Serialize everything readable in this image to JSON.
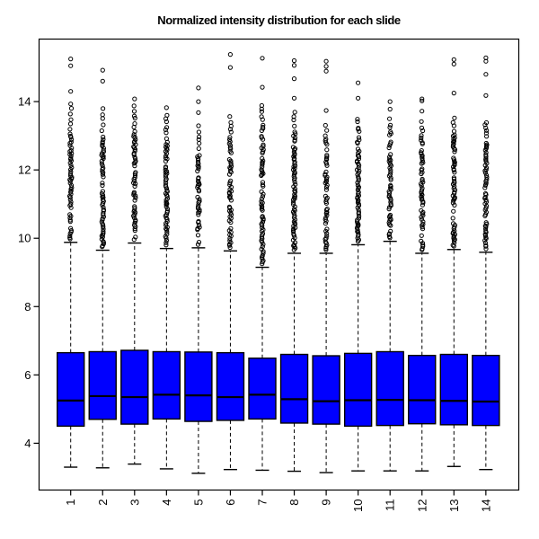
{
  "figure": {
    "title": "Normalized intensity distribution for each slide"
  },
  "chart_data": {
    "type": "boxplot",
    "title": "Normalized intensity distribution for each slide",
    "xlabel": "",
    "ylabel": "",
    "x_tick_labels": [
      "1",
      "2",
      "3",
      "4",
      "5",
      "6",
      "7",
      "8",
      "9",
      "10",
      "11",
      "12",
      "13",
      "14"
    ],
    "y_ticks": [
      4,
      6,
      8,
      10,
      12,
      14
    ],
    "ylim": [
      2.63,
      15.83
    ],
    "grid": false,
    "legend": null,
    "box_fill_color": "#0000ff",
    "line_color": "#000000",
    "background_color": "#ffffff",
    "slides": [
      {
        "label": "1",
        "whisker_low": 3.3,
        "q1": 4.5,
        "median": 5.25,
        "q3": 6.65,
        "whisker_high": 9.88,
        "dense_outliers_to": 13.0,
        "scattered_outliers_to": 14.0,
        "top_outliers": [
          14.3,
          15.05,
          15.25
        ]
      },
      {
        "label": "2",
        "whisker_low": 3.28,
        "q1": 4.7,
        "median": 5.38,
        "q3": 6.68,
        "whisker_high": 9.65,
        "dense_outliers_to": 12.9,
        "scattered_outliers_to": 13.85,
        "top_outliers": [
          14.6,
          14.92
        ]
      },
      {
        "label": "3",
        "whisker_low": 3.39,
        "q1": 4.56,
        "median": 5.35,
        "q3": 6.72,
        "whisker_high": 9.86,
        "dense_outliers_to": 13.0,
        "scattered_outliers_to": 13.95,
        "top_outliers": [
          14.08
        ]
      },
      {
        "label": "4",
        "whisker_low": 3.25,
        "q1": 4.71,
        "median": 5.42,
        "q3": 6.68,
        "whisker_high": 9.7,
        "dense_outliers_to": 12.8,
        "scattered_outliers_to": 13.6,
        "top_outliers": [
          13.82
        ]
      },
      {
        "label": "5",
        "whisker_low": 3.12,
        "q1": 4.64,
        "median": 5.4,
        "q3": 6.67,
        "whisker_high": 9.72,
        "dense_outliers_to": 12.5,
        "scattered_outliers_to": 13.45,
        "top_outliers": [
          13.68,
          14.0,
          14.4
        ]
      },
      {
        "label": "6",
        "whisker_low": 3.23,
        "q1": 4.67,
        "median": 5.35,
        "q3": 6.65,
        "whisker_high": 9.63,
        "dense_outliers_to": 12.9,
        "scattered_outliers_to": 13.65,
        "top_outliers": [
          15.0,
          15.38
        ]
      },
      {
        "label": "7",
        "whisker_low": 3.21,
        "q1": 4.71,
        "median": 5.42,
        "q3": 6.49,
        "whisker_high": 9.15,
        "dense_outliers_to": 13.3,
        "scattered_outliers_to": 14.0,
        "top_outliers": [
          14.42,
          15.27
        ]
      },
      {
        "label": "8",
        "whisker_low": 3.18,
        "q1": 4.59,
        "median": 5.29,
        "q3": 6.6,
        "whisker_high": 9.56,
        "dense_outliers_to": 13.1,
        "scattered_outliers_to": 13.75,
        "top_outliers": [
          14.1,
          14.67,
          15.06,
          15.2
        ]
      },
      {
        "label": "9",
        "whisker_low": 3.14,
        "q1": 4.56,
        "median": 5.23,
        "q3": 6.56,
        "whisker_high": 9.56,
        "dense_outliers_to": 12.9,
        "scattered_outliers_to": 13.42,
        "top_outliers": [
          13.74,
          14.89,
          15.03,
          15.18
        ]
      },
      {
        "label": "10",
        "whisker_low": 3.19,
        "q1": 4.5,
        "median": 5.26,
        "q3": 6.63,
        "whisker_high": 9.81,
        "dense_outliers_to": 13.2,
        "scattered_outliers_to": 13.5,
        "top_outliers": [
          14.1,
          14.55
        ]
      },
      {
        "label": "11",
        "whisker_low": 3.19,
        "q1": 4.52,
        "median": 5.27,
        "q3": 6.68,
        "whisker_high": 9.91,
        "dense_outliers_to": 13.1,
        "scattered_outliers_to": 13.55,
        "top_outliers": [
          13.78,
          14.0
        ]
      },
      {
        "label": "12",
        "whisker_low": 3.19,
        "q1": 4.57,
        "median": 5.26,
        "q3": 6.57,
        "whisker_high": 9.56,
        "dense_outliers_to": 12.9,
        "scattered_outliers_to": 13.5,
        "top_outliers": [
          13.72,
          14.02,
          14.08
        ]
      },
      {
        "label": "13",
        "whisker_low": 3.32,
        "q1": 4.54,
        "median": 5.24,
        "q3": 6.6,
        "whisker_high": 9.67,
        "dense_outliers_to": 13.0,
        "scattered_outliers_to": 13.55,
        "top_outliers": [
          14.25,
          15.1,
          15.23
        ]
      },
      {
        "label": "14",
        "whisker_low": 3.23,
        "q1": 4.52,
        "median": 5.22,
        "q3": 6.57,
        "whisker_high": 9.59,
        "dense_outliers_to": 12.8,
        "scattered_outliers_to": 13.42,
        "top_outliers": [
          14.18,
          14.8,
          15.18,
          15.28
        ]
      }
    ]
  }
}
